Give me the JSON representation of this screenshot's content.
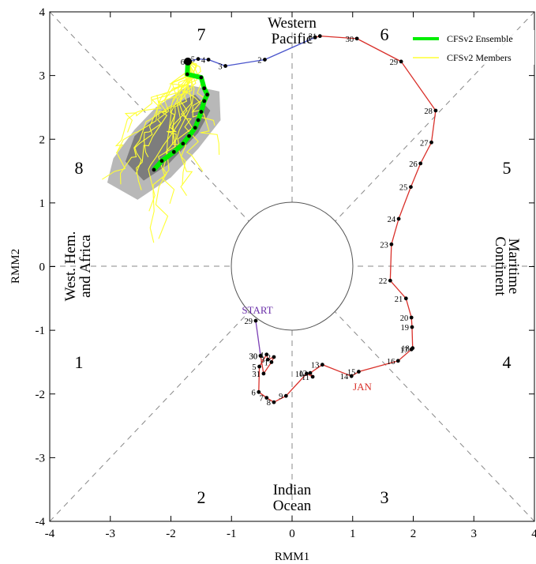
{
  "chart_data": {
    "type": "scatter",
    "title": "",
    "xlabel": "RMM1",
    "ylabel": "RMM2",
    "xlim": [
      -4,
      4
    ],
    "ylim": [
      -4,
      4
    ],
    "x_ticks": [
      "-4",
      "-3",
      "-2",
      "-1",
      "0",
      "1",
      "2",
      "3",
      "4"
    ],
    "y_ticks": [
      "-4",
      "-3",
      "-2",
      "-1",
      "0",
      "1",
      "2",
      "3",
      "4"
    ],
    "legend": {
      "placement": "top-right",
      "entries": [
        {
          "label": "CFSv2 Ensemble",
          "color": "#00ee00"
        },
        {
          "label": "CFSv2 Members",
          "color": "#ffff33"
        }
      ]
    },
    "phase_labels": [
      {
        "phase": "1",
        "x": -3.5,
        "y": -1.5
      },
      {
        "phase": "2",
        "x": -1.5,
        "y": -3.6
      },
      {
        "phase": "3",
        "x": 1.5,
        "y": -3.6
      },
      {
        "phase": "4",
        "x": 3.5,
        "y": -1.5
      },
      {
        "phase": "5",
        "x": 3.5,
        "y": 1.5
      },
      {
        "phase": "6",
        "x": 1.5,
        "y": 3.6
      },
      {
        "phase": "7",
        "x": -1.5,
        "y": 3.6
      },
      {
        "phase": "8",
        "x": -3.5,
        "y": 1.5
      }
    ],
    "regions": {
      "top_line1": "Western",
      "top_line2": "Pacific",
      "bottom_line1": "Indian",
      "bottom_line2": "Ocean",
      "left_line1": "West. Hem.",
      "left_line2": "and Africa",
      "right_line1": "Maritime",
      "right_line2": "Continent"
    },
    "start_label": "START",
    "jan_label": "JAN",
    "series": [
      {
        "name": "",
        "color": "#7b3fb5",
        "points": [
          {
            "day": "29",
            "x": -0.6,
            "y": -0.85
          },
          {
            "day": "30",
            "x": -0.52,
            "y": -1.4
          }
        ]
      },
      {
        "name": "",
        "color": "#d9302a",
        "points": [
          {
            "day": "30",
            "x": -0.52,
            "y": -1.4
          },
          {
            "day": "31",
            "x": -0.47,
            "y": -1.68
          },
          {
            "day": "1",
            "x": -0.34,
            "y": -1.5
          },
          {
            "day": "2",
            "x": -0.3,
            "y": -1.42
          },
          {
            "day": "3",
            "x": -0.4,
            "y": -1.46
          },
          {
            "day": "4",
            "x": -0.42,
            "y": -1.38
          },
          {
            "day": "5",
            "x": -0.54,
            "y": -1.57
          },
          {
            "day": "6",
            "x": -0.55,
            "y": -1.97
          },
          {
            "day": "7",
            "x": -0.42,
            "y": -2.06
          },
          {
            "day": "8",
            "x": -0.3,
            "y": -2.13
          },
          {
            "day": "9",
            "x": -0.1,
            "y": -2.03
          },
          {
            "day": "10",
            "x": 0.24,
            "y": -1.68
          },
          {
            "day": "11",
            "x": 0.34,
            "y": -1.73
          },
          {
            "day": "12",
            "x": 0.3,
            "y": -1.67
          },
          {
            "day": "13",
            "x": 0.5,
            "y": -1.54
          },
          {
            "day": "14",
            "x": 0.98,
            "y": -1.72
          },
          {
            "day": "15",
            "x": 1.1,
            "y": -1.65
          },
          {
            "day": "16",
            "x": 1.75,
            "y": -1.48
          },
          {
            "day": "17",
            "x": 1.97,
            "y": -1.3
          },
          {
            "day": "18",
            "x": 1.99,
            "y": -1.28
          },
          {
            "day": "19",
            "x": 1.98,
            "y": -0.95
          },
          {
            "day": "20",
            "x": 1.97,
            "y": -0.8
          },
          {
            "day": "21",
            "x": 1.88,
            "y": -0.5
          },
          {
            "day": "22",
            "x": 1.62,
            "y": -0.22
          },
          {
            "day": "23",
            "x": 1.64,
            "y": 0.35
          },
          {
            "day": "24",
            "x": 1.76,
            "y": 0.75
          },
          {
            "day": "25",
            "x": 1.96,
            "y": 1.25
          },
          {
            "day": "26",
            "x": 2.12,
            "y": 1.62
          },
          {
            "day": "27",
            "x": 2.3,
            "y": 1.95
          },
          {
            "day": "28",
            "x": 2.37,
            "y": 2.45
          },
          {
            "day": "29",
            "x": 1.8,
            "y": 3.22
          },
          {
            "day": "30",
            "x": 1.07,
            "y": 3.58
          },
          {
            "day": "31",
            "x": 0.46,
            "y": 3.62
          },
          {
            "day": "1",
            "x": 0.38,
            "y": 3.6
          }
        ]
      },
      {
        "name": "",
        "color": "#4a55cc",
        "points": [
          {
            "day": "1",
            "x": 0.38,
            "y": 3.6
          },
          {
            "day": "2",
            "x": -0.45,
            "y": 3.25
          },
          {
            "day": "3",
            "x": -1.1,
            "y": 3.15
          },
          {
            "day": "4",
            "x": -1.38,
            "y": 3.25
          },
          {
            "day": "5",
            "x": -1.55,
            "y": 3.26
          },
          {
            "day": "6",
            "x": -1.72,
            "y": 3.22
          }
        ]
      },
      {
        "name": "CFSv2 Ensemble",
        "color": "#00ee00",
        "points": [
          {
            "x": -1.72,
            "y": 3.22
          },
          {
            "x": -1.73,
            "y": 3.02
          },
          {
            "x": -1.5,
            "y": 2.97
          },
          {
            "x": -1.45,
            "y": 2.8
          },
          {
            "x": -1.4,
            "y": 2.7
          },
          {
            "x": -1.45,
            "y": 2.6
          },
          {
            "x": -1.5,
            "y": 2.43
          },
          {
            "x": -1.55,
            "y": 2.3
          },
          {
            "x": -1.6,
            "y": 2.18
          },
          {
            "x": -1.7,
            "y": 2.05
          },
          {
            "x": -1.8,
            "y": 1.93
          },
          {
            "x": -1.95,
            "y": 1.8
          },
          {
            "x": -2.15,
            "y": 1.66
          },
          {
            "x": -2.28,
            "y": 1.52
          }
        ]
      }
    ],
    "members_note_count": 0
  }
}
